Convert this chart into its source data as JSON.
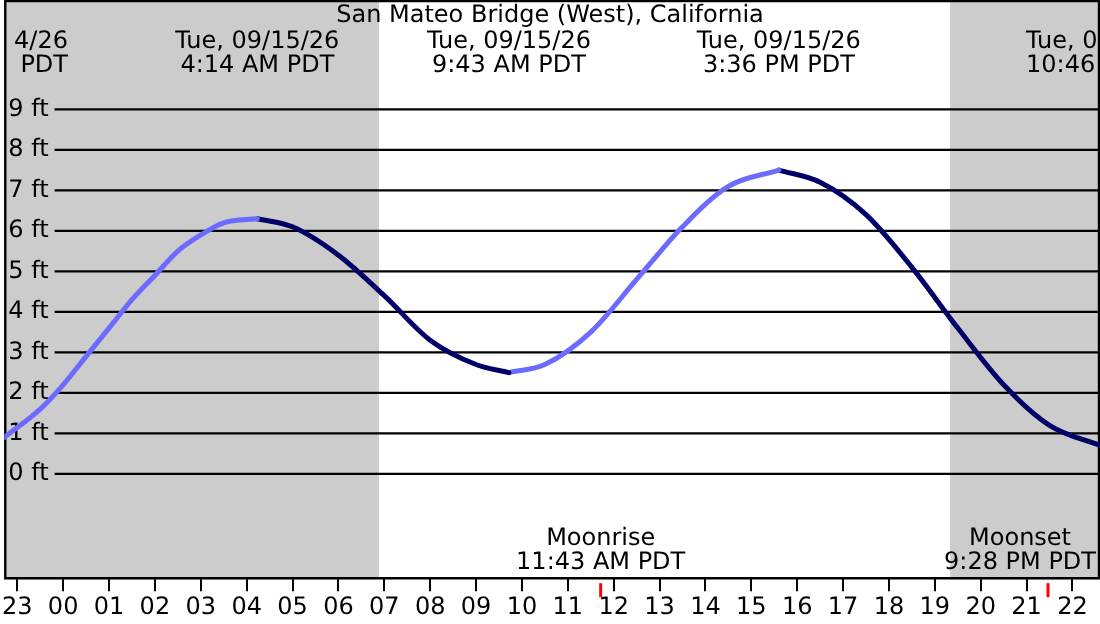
{
  "chart_data": {
    "type": "line",
    "title": "San Mateo Bridge (West), California",
    "xlim": [
      "--09-14T22:43",
      "--09-15T22:36"
    ],
    "ylim": [
      -2.6,
      11.7
    ],
    "xticks": [
      {
        "value": "--09-14T23:00",
        "label": "23"
      },
      {
        "value": "--09-15T00:00",
        "label": "00"
      },
      {
        "value": "--09-15T01:00",
        "label": "01"
      },
      {
        "value": "--09-15T02:00",
        "label": "02"
      },
      {
        "value": "--09-15T03:00",
        "label": "03"
      },
      {
        "value": "--09-15T04:00",
        "label": "04"
      },
      {
        "value": "--09-15T05:00",
        "label": "05"
      },
      {
        "value": "--09-15T06:00",
        "label": "06"
      },
      {
        "value": "--09-15T07:00",
        "label": "07"
      },
      {
        "value": "--09-15T08:00",
        "label": "08"
      },
      {
        "value": "--09-15T09:00",
        "label": "09"
      },
      {
        "value": "--09-15T10:00",
        "label": "10"
      },
      {
        "value": "--09-15T11:00",
        "label": "11"
      },
      {
        "value": "--09-15T12:00",
        "label": "12"
      },
      {
        "value": "--09-15T13:00",
        "label": "13"
      },
      {
        "value": "--09-15T14:00",
        "label": "14"
      },
      {
        "value": "--09-15T15:00",
        "label": "15"
      },
      {
        "value": "--09-15T16:00",
        "label": "16"
      },
      {
        "value": "--09-15T17:00",
        "label": "17"
      },
      {
        "value": "--09-15T18:00",
        "label": "18"
      },
      {
        "value": "--09-15T19:00",
        "label": "19"
      },
      {
        "value": "--09-15T20:00",
        "label": "20"
      },
      {
        "value": "--09-15T21:00",
        "label": "21"
      },
      {
        "value": "--09-15T22:00",
        "label": "22"
      }
    ],
    "yticks": [
      {
        "value": 0,
        "label": "0 ft"
      },
      {
        "value": 1,
        "label": "1 ft"
      },
      {
        "value": 2,
        "label": "2 ft"
      },
      {
        "value": 3,
        "label": "3 ft"
      },
      {
        "value": 4,
        "label": "4 ft"
      },
      {
        "value": 5,
        "label": "5 ft"
      },
      {
        "value": 6,
        "label": "6 ft"
      },
      {
        "value": 7,
        "label": "7 ft"
      },
      {
        "value": 8,
        "label": "8 ft"
      },
      {
        "value": 9,
        "label": "9 ft"
      }
    ],
    "grid": "y",
    "marker": "none",
    "line_style": "solid",
    "series": [
      {
        "color": "#6b6bff",
        "x": [
          "--09-14T22:43",
          "--09-14T23:30",
          "--09-15T00:00",
          "--09-15T00:30",
          "--09-15T01:00",
          "--09-15T01:30",
          "--09-15T02:00",
          "--09-15T02:30",
          "--09-15T03:00",
          "--09-15T03:30",
          "--09-15T04:14"
        ],
        "values": [
          0.9,
          1.6,
          2.2,
          2.9,
          3.6,
          4.3,
          4.9,
          5.5,
          5.9,
          6.2,
          6.3
        ]
      },
      {
        "color": "#000066",
        "x": [
          "--09-15T04:14",
          "--09-15T05:00",
          "--09-15T06:00",
          "--09-15T07:00",
          "--09-15T08:00",
          "--09-15T09:00",
          "--09-15T09:43"
        ],
        "values": [
          6.3,
          6.1,
          5.4,
          4.4,
          3.3,
          2.7,
          2.5
        ]
      },
      {
        "color": "#6b6bff",
        "x": [
          "--09-15T09:43",
          "--09-15T10:30",
          "--09-15T11:30",
          "--09-15T12:30",
          "--09-15T13:30",
          "--09-15T14:30",
          "--09-15T15:36"
        ],
        "values": [
          2.5,
          2.7,
          3.5,
          4.8,
          6.1,
          7.1,
          7.5
        ]
      },
      {
        "color": "#000066",
        "x": [
          "--09-15T15:36",
          "--09-15T16:30",
          "--09-15T17:30",
          "--09-15T18:30",
          "--09-15T19:30",
          "--09-15T20:30",
          "--09-15T21:30",
          "--09-15T22:36"
        ],
        "values": [
          7.5,
          7.2,
          6.4,
          5.1,
          3.6,
          2.2,
          1.2,
          0.7
        ]
      }
    ],
    "bands": [
      {
        "axis": "x",
        "from": "--09-14T22:43",
        "to": "--09-15T06:53",
        "color": "#cccccc"
      },
      {
        "axis": "x",
        "from": "--09-15T19:20",
        "to": "--09-15T22:36",
        "color": "#cccccc"
      }
    ],
    "ref_lines": [
      {
        "axis": "x",
        "value": "--09-15T11:43",
        "label": "Moonrise\n11:43 AM PDT",
        "color": "#ff0000"
      },
      {
        "axis": "x",
        "value": "--09-15T21:28",
        "label": "Moonset\n9:28 PM PDT",
        "color": "#ff0000"
      }
    ],
    "annotations": [
      "4/26\nPDT",
      "Tue, 09/15/26\n4:14 AM PDT",
      "Tue, 09/15/26\n9:43 AM PDT",
      "Tue, 09/15/26\n3:36 PM PDT",
      "Tue, 0\n10:46"
    ]
  }
}
